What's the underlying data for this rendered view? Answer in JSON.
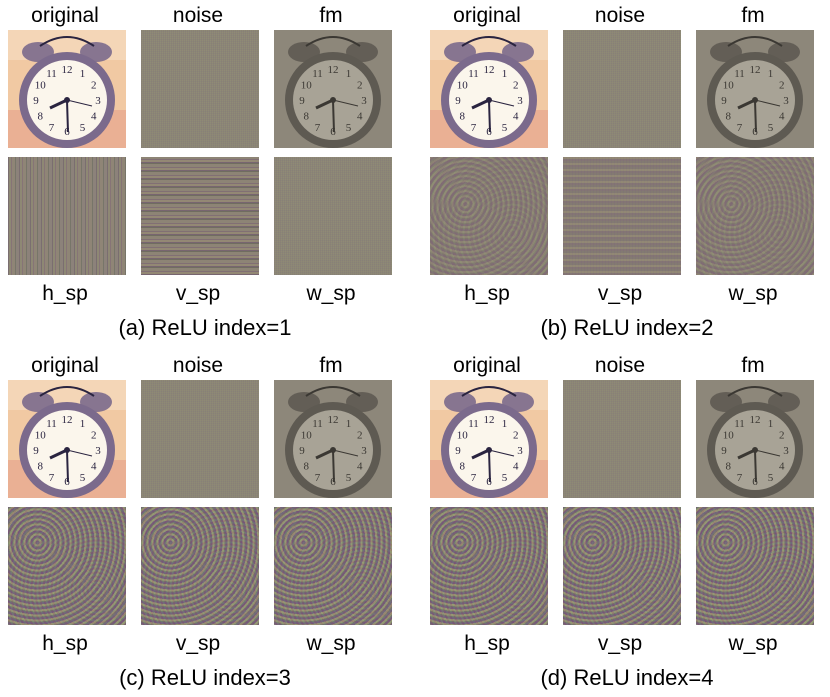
{
  "colors": {
    "clock_bg_warm": "#f1c9a3",
    "clock_bezel": "#7b6a8c",
    "clock_face": "#fbf6ec",
    "noise_gray": "#8f8a78",
    "fm_gray": "#8d877a"
  },
  "panels": [
    {
      "caption": "(a) ReLU index=1",
      "top_labels": [
        "original",
        "noise",
        "fm"
      ],
      "bottom_labels": [
        "h_sp",
        "v_sp",
        "w_sp"
      ]
    },
    {
      "caption": "(b) ReLU index=2",
      "top_labels": [
        "original",
        "noise",
        "fm"
      ],
      "bottom_labels": [
        "h_sp",
        "v_sp",
        "w_sp"
      ]
    },
    {
      "caption": "(c) ReLU index=3",
      "top_labels": [
        "original",
        "noise",
        "fm"
      ],
      "bottom_labels": [
        "h_sp",
        "v_sp",
        "w_sp"
      ]
    },
    {
      "caption": "(d) ReLU index=4",
      "top_labels": [
        "original",
        "noise",
        "fm"
      ],
      "bottom_labels": [
        "h_sp",
        "v_sp",
        "w_sp"
      ]
    }
  ],
  "clock": {
    "numerals": [
      "12",
      "1",
      "2",
      "3",
      "4",
      "5",
      "6",
      "7",
      "8",
      "9",
      "10",
      "11"
    ]
  }
}
